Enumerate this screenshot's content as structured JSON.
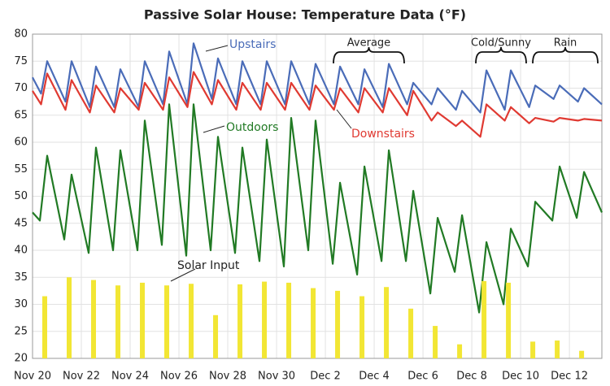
{
  "chart_data": {
    "type": "line",
    "title": "Passive Solar House: Temperature Data (°F)",
    "xlim": [
      0,
      23.33
    ],
    "ylim": [
      20,
      80
    ],
    "yticks": [
      20,
      25,
      30,
      35,
      40,
      45,
      50,
      55,
      60,
      65,
      70,
      75,
      80
    ],
    "xticks": [
      {
        "value": 0,
        "label": "Nov 20"
      },
      {
        "value": 2,
        "label": "Nov 22"
      },
      {
        "value": 4,
        "label": "Nov 24"
      },
      {
        "value": 6,
        "label": "Nov 26"
      },
      {
        "value": 8,
        "label": "Nov 28"
      },
      {
        "value": 10,
        "label": "Nov 30"
      },
      {
        "value": 12,
        "label": "Dec 2"
      },
      {
        "value": 14,
        "label": "Dec 4"
      },
      {
        "value": 16,
        "label": "Dec 6"
      },
      {
        "value": 18,
        "label": "Dec 8"
      },
      {
        "value": 20,
        "label": "Dec 10"
      },
      {
        "value": 22,
        "label": "Dec 12"
      }
    ],
    "grid": true,
    "series": [
      {
        "name": "Upstairs",
        "kind": "line",
        "color": "#4a6cb8",
        "x": [
          0,
          0.35,
          0.6,
          1.35,
          1.6,
          2.35,
          2.6,
          3.35,
          3.6,
          4.35,
          4.6,
          5.35,
          5.6,
          6.35,
          6.6,
          7.35,
          7.6,
          8.35,
          8.6,
          9.35,
          9.6,
          10.35,
          10.6,
          11.35,
          11.6,
          12.35,
          12.6,
          13.35,
          13.6,
          14.35,
          14.6,
          15.35,
          15.6,
          16.35,
          16.6,
          17.35,
          17.6,
          18.35,
          18.6,
          19.35,
          19.6,
          20.35,
          20.6,
          21.35,
          21.6,
          22.35,
          22.6,
          23.33
        ],
        "values": [
          72,
          69,
          75,
          67.5,
          75,
          66.5,
          74,
          66.5,
          73.5,
          66.5,
          75,
          67,
          76.8,
          67,
          78.3,
          68,
          75.5,
          67,
          75,
          67,
          75,
          67,
          75,
          67,
          74.5,
          67,
          74,
          67,
          73.5,
          66.5,
          74.5,
          67,
          71,
          67,
          70,
          66,
          69.5,
          65.5,
          73.3,
          66,
          73.3,
          66.5,
          70.5,
          68,
          70.5,
          67.5,
          70,
          67
        ]
      },
      {
        "name": "Downstairs",
        "kind": "line",
        "color": "#e03a32",
        "x": [
          0,
          0.35,
          0.6,
          1.35,
          1.6,
          2.35,
          2.6,
          3.35,
          3.6,
          4.35,
          4.6,
          5.35,
          5.6,
          6.35,
          6.6,
          7.35,
          7.6,
          8.35,
          8.6,
          9.35,
          9.6,
          10.35,
          10.6,
          11.35,
          11.6,
          12.35,
          12.6,
          13.35,
          13.6,
          14.35,
          14.6,
          15.35,
          15.6,
          16.35,
          16.6,
          17.35,
          17.6,
          18.35,
          18.6,
          19.35,
          19.6,
          20.35,
          20.6,
          21.35,
          21.6,
          22.35,
          22.6,
          23.33
        ],
        "values": [
          69.5,
          67,
          72.7,
          66,
          71.5,
          65.5,
          70.5,
          65.5,
          70,
          66,
          71,
          66,
          72,
          66.5,
          73,
          67,
          71.5,
          66,
          71,
          66,
          71,
          66,
          71,
          66,
          70.5,
          66,
          70,
          65.5,
          70,
          65.5,
          70,
          65,
          69.5,
          64,
          65.5,
          63,
          64,
          61,
          67,
          64,
          66.5,
          63.5,
          64.5,
          63.8,
          64.5,
          64,
          64.3,
          64
        ]
      },
      {
        "name": "Outdoors",
        "kind": "line",
        "color": "#217a24",
        "x": [
          0,
          0.3,
          0.6,
          1.3,
          1.6,
          2.3,
          2.6,
          3.3,
          3.6,
          4.3,
          4.6,
          5.3,
          5.6,
          6.3,
          6.6,
          7.3,
          7.6,
          8.3,
          8.6,
          9.3,
          9.6,
          10.3,
          10.6,
          11.3,
          11.6,
          12.3,
          12.6,
          13.3,
          13.6,
          14.3,
          14.6,
          15.3,
          15.6,
          16.3,
          16.6,
          17.3,
          17.6,
          18.3,
          18.6,
          19.3,
          19.6,
          20.3,
          20.6,
          21.3,
          21.6,
          22.3,
          22.6,
          23.33
        ],
        "values": [
          47,
          45.5,
          57.5,
          42,
          54,
          39.5,
          59,
          40,
          58.5,
          40,
          64,
          41,
          67,
          39,
          67,
          40,
          61,
          39.5,
          59,
          38,
          60.5,
          37,
          64.5,
          40,
          64,
          37.5,
          52.5,
          35.5,
          55.5,
          38,
          58.5,
          38,
          51,
          32,
          46,
          36,
          46.5,
          28.5,
          41.5,
          30,
          44,
          37,
          49,
          45.5,
          55.5,
          46,
          54.5,
          47
        ]
      },
      {
        "name": "Solar Input",
        "kind": "bar",
        "color": "#f2e634",
        "x": [
          0.5,
          1.5,
          2.5,
          3.5,
          4.5,
          5.5,
          6.5,
          7.5,
          8.5,
          9.5,
          10.5,
          11.5,
          12.5,
          13.5,
          14.5,
          15.5,
          16.5,
          17.5,
          18.5,
          19.5,
          20.5,
          21.5,
          22.5
        ],
        "values": [
          31.5,
          35,
          34.5,
          33.5,
          34,
          33.5,
          33.8,
          28,
          33.7,
          34.2,
          34,
          33,
          32.5,
          31.5,
          33.2,
          29.2,
          26,
          22.6,
          34.3,
          34,
          23.1,
          23.3,
          21.4
        ]
      }
    ],
    "annotations": [
      "Average",
      "Cold/Sunny",
      "Rain"
    ]
  }
}
